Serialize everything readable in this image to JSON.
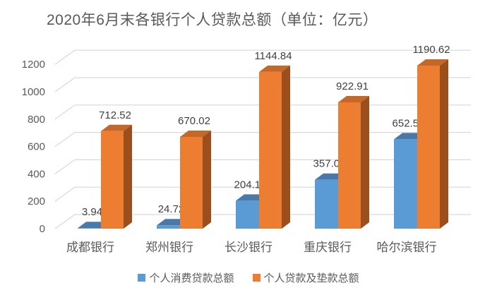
{
  "chart_data": {
    "type": "bar",
    "variant": "3d-clustered-column",
    "title": "2020年6月末各银行个人贷款总额（单位：亿元）",
    "categories": [
      "成都银行",
      "郑州银行",
      "长沙银行",
      "重庆银行",
      "哈尔滨银行"
    ],
    "series": [
      {
        "name": "个人消费贷款总额",
        "values": [
          3.94,
          24.72,
          204.13,
          357.08,
          652.52
        ],
        "color": "#5B9BD5",
        "top_color": "#4A79A9",
        "side_color": "#3C6B96"
      },
      {
        "name": "个人贷款及垫款总额",
        "values": [
          712.52,
          670.02,
          1144.84,
          922.91,
          1190.62
        ],
        "color": "#ED7D31",
        "top_color": "#C4682A",
        "side_color": "#9B4F1D"
      }
    ],
    "xlabel": "",
    "ylabel": "",
    "ylim": [
      0,
      1200
    ],
    "yticks": [
      0,
      200,
      400,
      600,
      800,
      1000,
      1200
    ],
    "grid": true,
    "data_labels": true,
    "legend_position": "bottom",
    "gridline_color": "#D9D9D9",
    "axis_text_color": "#595959",
    "data_label_color": "#404040",
    "title_color": "#595959",
    "background_color": "#FFFFFF"
  }
}
